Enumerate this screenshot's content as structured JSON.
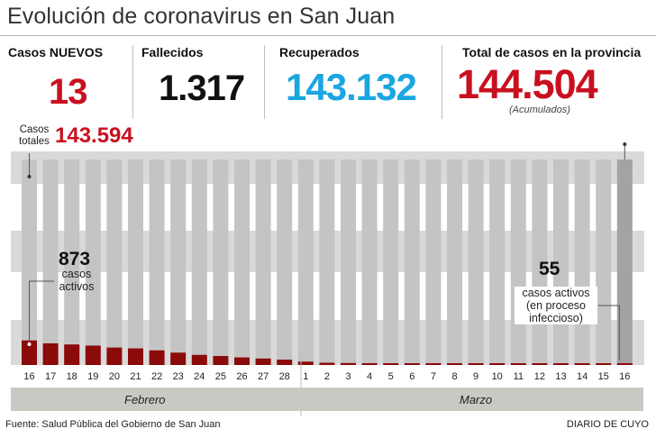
{
  "title": "Evolución de coronavirus en San Juan",
  "stats": {
    "nuevos_label": "Casos NUEVOS",
    "nuevos_value": "13",
    "fallecidos_label": "Fallecidos",
    "fallecidos_value": "1.317",
    "recuperados_label": "Recuperados",
    "recuperados_value": "143.132",
    "total_label": "Total de casos en la provincia",
    "total_value": "144.504",
    "total_note": "(Acumulados)",
    "casos_totales_label_1": "Casos",
    "casos_totales_label_2": "totales",
    "casos_totales_value": "143.594"
  },
  "annotations": {
    "start_value": "873",
    "start_text_1": "casos",
    "start_text_2": "activos",
    "end_value": "55",
    "end_text_1": "casos activos",
    "end_text_2": "(en proceso",
    "end_text_3": "infeccioso)"
  },
  "months": {
    "feb": "Febrero",
    "mar": "Marzo"
  },
  "footer": {
    "source": "Fuente: Salud Pública del Gobierno de San Juan",
    "brand": "DIARIO DE CUYO"
  },
  "colors": {
    "active": "#8b0a0a",
    "total": "#c4c4c4",
    "total_last": "#a3a3a3",
    "band": "#d9d9d9",
    "accent_red": "#c8101f",
    "accent_blue": "#1aa6e0"
  },
  "chart_data": {
    "type": "bar",
    "categories": [
      "16",
      "17",
      "18",
      "19",
      "20",
      "21",
      "22",
      "23",
      "24",
      "25",
      "26",
      "27",
      "28",
      "1",
      "2",
      "3",
      "4",
      "5",
      "6",
      "7",
      "8",
      "9",
      "10",
      "11",
      "12",
      "13",
      "14",
      "15",
      "16"
    ],
    "series": [
      {
        "name": "casos activos",
        "values": [
          873,
          770,
          730,
          690,
          620,
          590,
          520,
          440,
          360,
          320,
          270,
          230,
          190,
          120,
          80,
          70,
          65,
          62,
          58,
          57,
          56,
          56,
          55,
          54,
          54,
          53,
          52,
          54,
          55
        ]
      }
    ],
    "ylim": [
      0,
      7300
    ]
  }
}
